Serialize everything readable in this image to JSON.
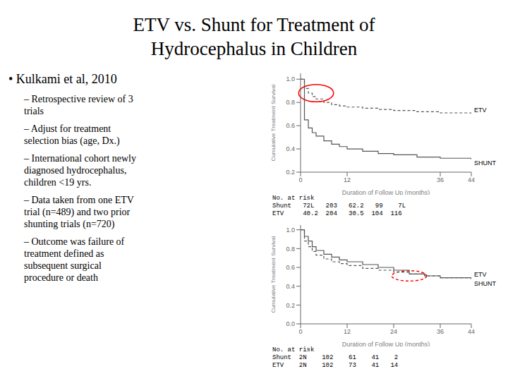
{
  "title": "ETV vs. Shunt for Treatment of\nHydrocephalus in Children",
  "annotations": [
    "• Kulkami et al, 2010",
    "– Retrospective review of 3\ntrials",
    "– Adjust for treatment\nselection bias (age, Dx.)",
    "– International cohort newly\ndiagnosed hydrocephalus,\nchildren <19 yrs.",
    "– Data taken from one ETV\ntrial (n=489) and two prior\nshunting trials (n=720)",
    "– Outcome was failure of\ntreatment defined as\nsubsequent surgical\nprocedure or death"
  ],
  "chart_data": [
    {
      "type": "step",
      "xlabel": "Duration of Follow Up (months)",
      "ylabel": "Cumulative Treatment Survival",
      "x": [
        0,
        1,
        2,
        3,
        4,
        6,
        8,
        10,
        12,
        16,
        20,
        24,
        30,
        36,
        44
      ],
      "series": [
        {
          "name": "ETV",
          "color": "#555555",
          "line_style": "dashed",
          "values": [
            1.0,
            0.92,
            0.88,
            0.85,
            0.83,
            0.8,
            0.78,
            0.77,
            0.76,
            0.75,
            0.74,
            0.73,
            0.72,
            0.71,
            0.7
          ]
        },
        {
          "name": "SHUNT",
          "color": "#555555",
          "line_style": "solid",
          "values": [
            1.0,
            0.65,
            0.58,
            0.54,
            0.51,
            0.47,
            0.44,
            0.42,
            0.4,
            0.38,
            0.36,
            0.35,
            0.33,
            0.32,
            0.31
          ]
        }
      ],
      "xlim": [
        0,
        44
      ],
      "xticks": [
        0,
        12,
        36,
        44
      ],
      "ylim": [
        0.2,
        1.05
      ],
      "yticks": [
        0.2,
        0.4,
        0.6,
        0.8,
        {
          "value": 1.0,
          "label": "1.0"
        }
      ],
      "grid": false,
      "highlights": [
        {
          "x": 4,
          "y": 0.88,
          "width": 9,
          "height": 0.15,
          "color": "red",
          "line_style": "solid"
        }
      ],
      "annotations": [
        "No. at risk",
        "Shunt   72L   203   62.2   99    7L",
        "ETV     40.2  204   30.5  104  116"
      ]
    },
    {
      "type": "step",
      "xlabel": "Duration of Follow Up (months)",
      "ylabel": "Cumulative Treatment Survival",
      "x": [
        0,
        1,
        2,
        3,
        4,
        6,
        8,
        10,
        12,
        16,
        20,
        24,
        28,
        32,
        36,
        44
      ],
      "series": [
        {
          "name": "ETV",
          "color": "#555555",
          "line_style": "solid",
          "values": [
            1.0,
            0.93,
            0.88,
            0.82,
            0.78,
            0.74,
            0.71,
            0.68,
            0.66,
            0.63,
            0.6,
            0.57,
            0.53,
            0.51,
            0.49,
            0.48
          ]
        },
        {
          "name": "SHUNT",
          "color": "#555555",
          "line_style": "dashed",
          "values": [
            1.0,
            0.88,
            0.82,
            0.77,
            0.73,
            0.69,
            0.66,
            0.64,
            0.62,
            0.59,
            0.57,
            0.55,
            0.53,
            0.51,
            0.49,
            0.47
          ]
        }
      ],
      "xlim": [
        0,
        44
      ],
      "xticks": [
        0,
        12,
        24,
        36,
        44
      ],
      "ylim": [
        0.0,
        1.05
      ],
      "yticks": [
        {
          "value": 0.0,
          "label": "0.0"
        },
        0.2,
        0.4,
        0.6,
        0.8,
        {
          "value": 1.0,
          "label": "1.0"
        }
      ],
      "grid": false,
      "highlights": [
        {
          "x": 28,
          "y": 0.51,
          "width": 9,
          "height": 0.11,
          "color": "red",
          "line_style": "dashed"
        }
      ],
      "annotations": [
        "No. at risk",
        "Shunt  2N    102    61    41    2",
        "ETV    2N    102    73    41   14"
      ]
    }
  ]
}
